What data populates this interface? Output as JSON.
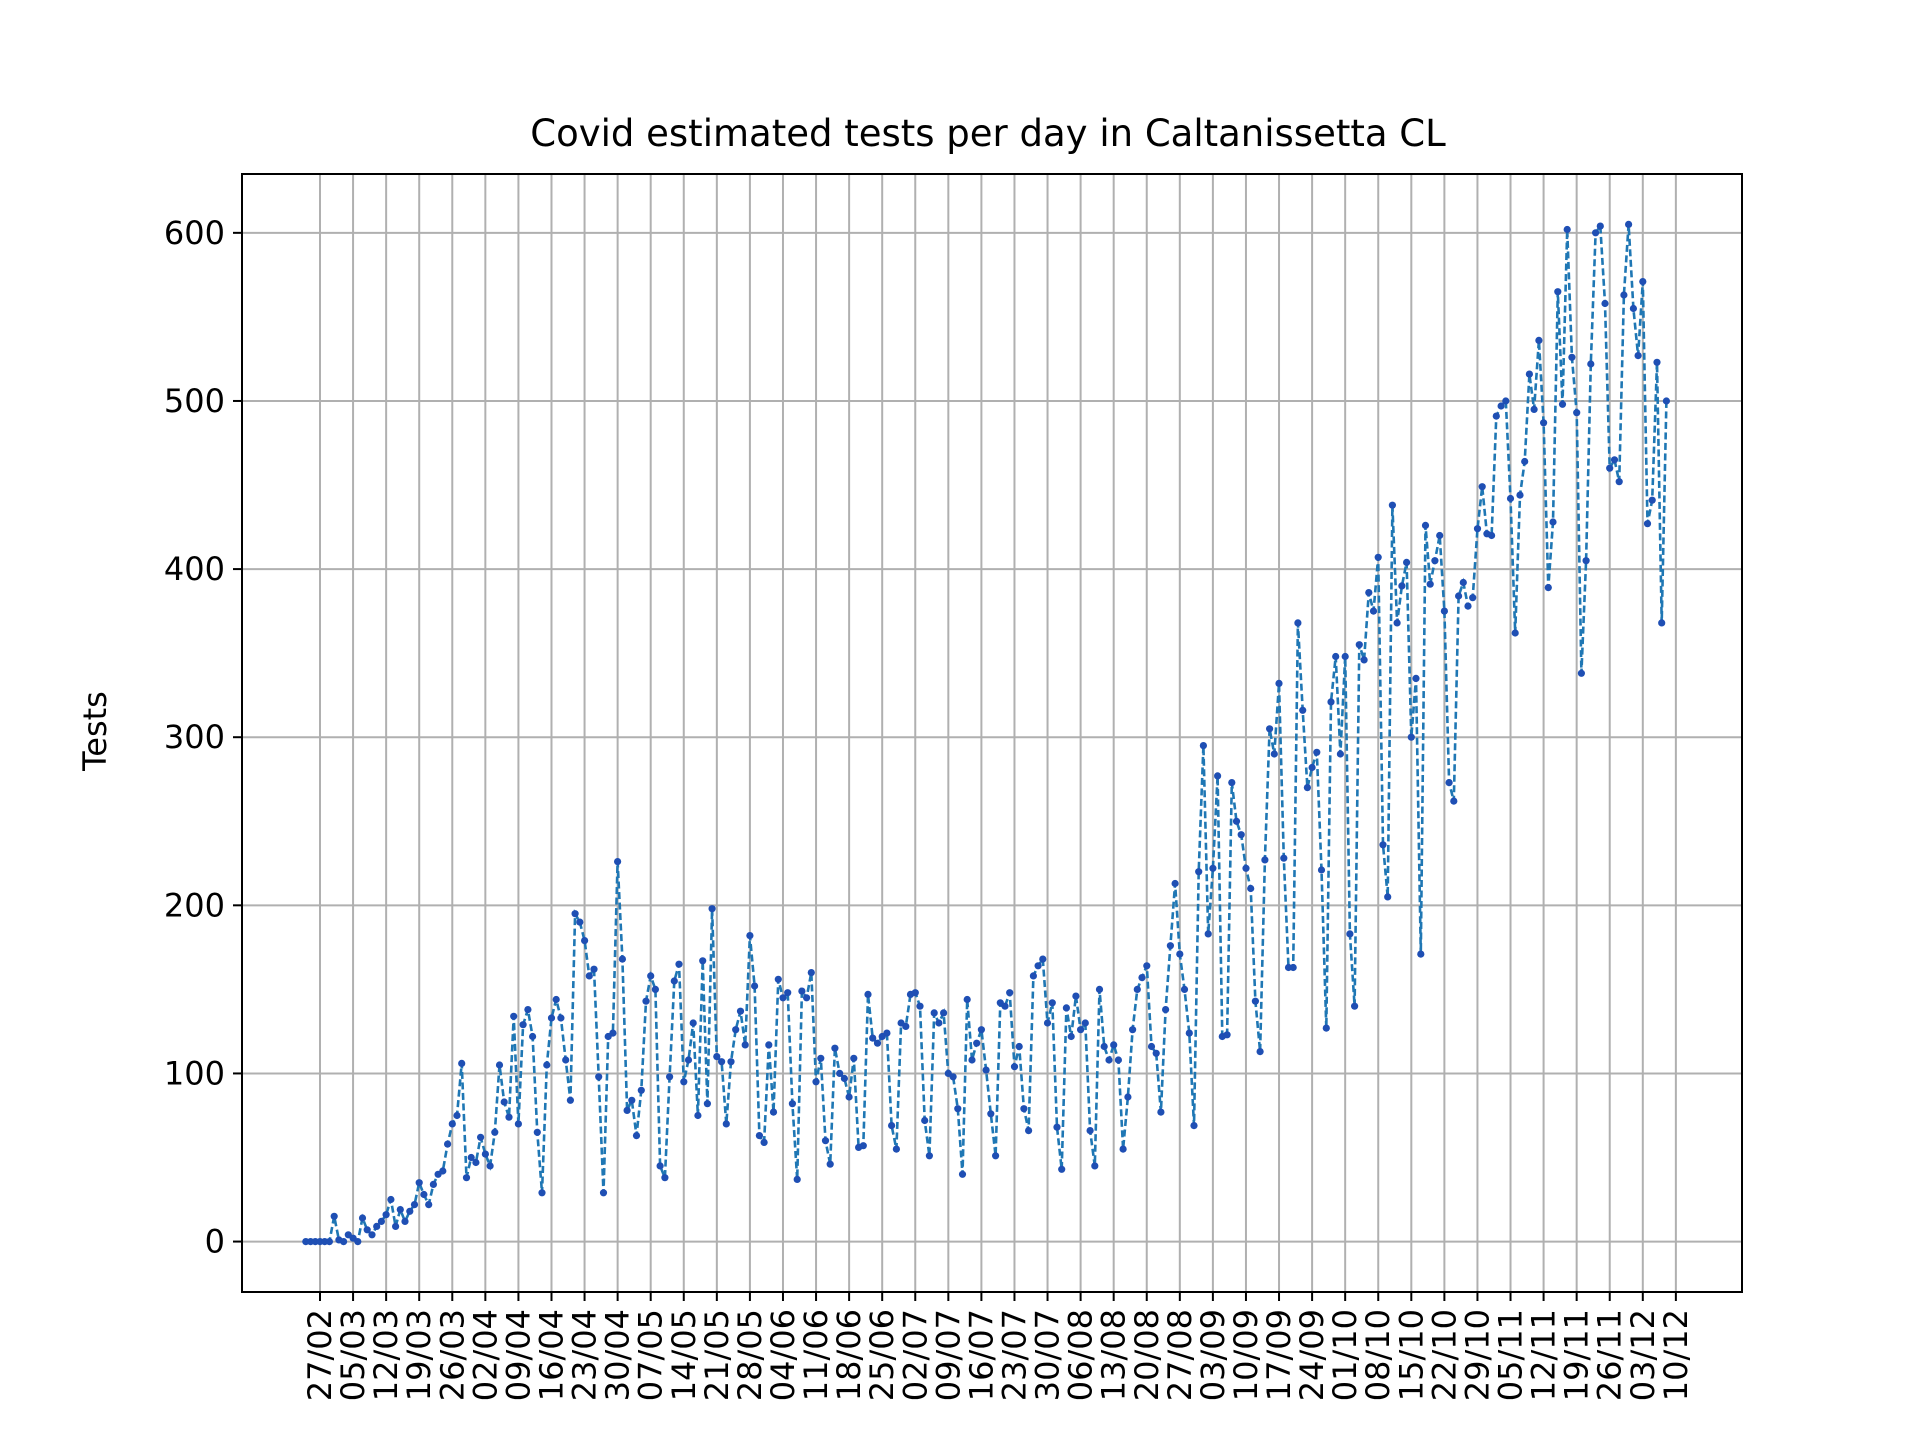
{
  "chart_data": {
    "type": "line",
    "title": "Covid estimated tests per day in Caltanissetta CL",
    "xlabel": "",
    "ylabel": "Tests",
    "ylim": [
      -30,
      635
    ],
    "yticks": [
      0,
      100,
      200,
      300,
      400,
      500,
      600
    ],
    "grid": true,
    "legend": "none",
    "line_style": "dashed with dot markers",
    "series_color": "#1f77b4",
    "marker_color": "#1f4fb4",
    "x_start": "2020-02-24",
    "x_tick_labels": [
      "27/02",
      "05/03",
      "12/03",
      "19/03",
      "26/03",
      "02/04",
      "09/04",
      "16/04",
      "23/04",
      "30/04",
      "07/05",
      "14/05",
      "21/05",
      "28/05",
      "04/06",
      "11/06",
      "18/06",
      "25/06",
      "02/07",
      "09/07",
      "16/07",
      "23/07",
      "30/07",
      "06/08",
      "13/08",
      "20/08",
      "27/08",
      "03/09",
      "10/09",
      "17/09",
      "24/09",
      "01/10",
      "08/10",
      "15/10",
      "22/10",
      "29/10",
      "05/11",
      "12/11",
      "19/11",
      "26/11",
      "03/12",
      "10/12"
    ],
    "series": [
      {
        "name": "",
        "values": [
          0,
          0,
          0,
          0,
          0,
          0,
          15,
          1,
          0,
          4,
          2,
          0,
          14,
          7,
          4,
          9,
          12,
          16,
          25,
          9,
          19,
          12,
          18,
          22,
          35,
          28,
          22,
          34,
          40,
          42,
          58,
          70,
          75,
          106,
          38,
          50,
          47,
          62,
          52,
          45,
          65,
          105,
          83,
          74,
          134,
          70,
          129,
          138,
          122,
          65,
          29,
          105,
          133,
          144,
          133,
          108,
          84,
          195,
          190,
          179,
          158,
          162,
          98,
          29,
          122,
          124,
          226,
          168,
          78,
          84,
          63,
          90,
          143,
          158,
          150,
          45,
          38,
          98,
          155,
          165,
          95,
          108,
          130,
          75,
          167,
          82,
          198,
          110,
          107,
          70,
          107,
          126,
          137,
          117,
          182,
          152,
          63,
          59,
          117,
          77,
          156,
          145,
          148,
          82,
          37,
          149,
          145,
          160,
          95,
          109,
          60,
          46,
          115,
          100,
          97,
          86,
          109,
          56,
          57,
          147,
          121,
          118,
          122,
          124,
          69,
          55,
          130,
          128,
          147,
          148,
          140,
          72,
          51,
          136,
          130,
          136,
          100,
          98,
          79,
          40,
          144,
          108,
          118,
          126,
          102,
          76,
          51,
          142,
          140,
          148,
          104,
          116,
          79,
          66,
          158,
          164,
          168,
          130,
          142,
          68,
          43,
          139,
          122,
          146,
          126,
          130,
          66,
          45,
          150,
          116,
          108,
          117,
          108,
          55,
          86,
          126,
          150,
          157,
          164,
          116,
          112,
          77,
          138,
          176,
          213,
          171,
          150,
          124,
          69,
          220,
          295,
          183,
          222,
          277,
          122,
          123,
          273,
          250,
          242,
          222,
          210,
          143,
          113,
          227,
          305,
          290,
          332,
          228,
          163,
          163,
          368,
          316,
          270,
          282,
          291,
          221,
          127,
          321,
          348,
          290,
          348,
          183,
          140,
          355,
          346,
          386,
          375,
          407,
          236,
          205,
          438,
          368,
          390,
          404,
          300,
          335,
          171,
          426,
          391,
          405,
          420,
          375,
          273,
          262,
          384,
          392,
          378,
          383,
          424,
          449,
          421,
          420,
          491,
          497,
          500,
          442,
          362,
          444,
          464,
          516,
          495,
          536,
          487,
          389,
          428,
          565,
          498,
          602,
          526,
          493,
          338,
          405,
          522,
          600,
          604,
          558,
          460,
          465,
          452,
          563,
          605,
          555,
          527,
          571,
          427,
          441,
          523,
          368,
          500
        ]
      }
    ]
  }
}
